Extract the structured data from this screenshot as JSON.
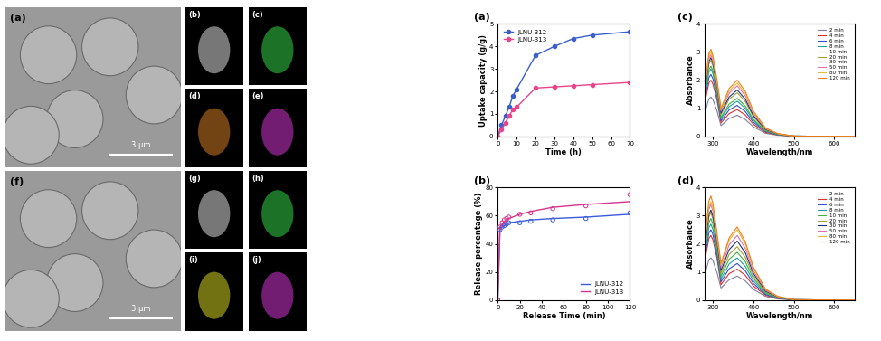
{
  "chart_data": [
    {
      "type": "line",
      "title": "(a)",
      "x_label": "Time (h)",
      "y_label": "Uptake capacity (g/g)",
      "x": [
        0,
        2,
        4,
        6,
        8,
        10,
        20,
        30,
        40,
        50,
        70
      ],
      "xlim": [
        0,
        70
      ],
      "xticks": [
        0,
        10,
        20,
        30,
        40,
        50,
        60,
        70
      ],
      "ylim": [
        0,
        5
      ],
      "yticks": [
        0,
        1,
        2,
        3,
        4,
        5
      ],
      "legend": "upper left",
      "series": [
        {
          "name": "JLNU-312",
          "color": "#3a5fcd",
          "marker": "circle",
          "values": [
            0,
            0.5,
            0.9,
            1.3,
            1.8,
            2.1,
            3.6,
            4.0,
            4.35,
            4.5,
            4.65
          ]
        },
        {
          "name": "JLNU-313",
          "color": "#e8458b",
          "marker": "circle",
          "values": [
            0,
            0.3,
            0.6,
            0.9,
            1.2,
            1.3,
            2.15,
            2.2,
            2.25,
            2.3,
            2.4
          ]
        }
      ]
    },
    {
      "type": "scatter",
      "title": "(b)",
      "x_label": "Release Time (min)",
      "y_label": "Release percentage (%)",
      "x": [
        0,
        2,
        4,
        6,
        8,
        10,
        20,
        30,
        50,
        80,
        120
      ],
      "xlim": [
        0,
        120
      ],
      "xticks": [
        0,
        20,
        40,
        60,
        80,
        100,
        120
      ],
      "ylim": [
        0,
        80
      ],
      "yticks": [
        0,
        20,
        40,
        60,
        80
      ],
      "legend": "lower right",
      "series": [
        {
          "name": "JLNU-312",
          "color": "#3b5bdb",
          "marker": "circle",
          "values": [
            0,
            50,
            52,
            53,
            54,
            55,
            55,
            56,
            57,
            58,
            62
          ],
          "fit": [
            0,
            50,
            52,
            53,
            54,
            55,
            56,
            57,
            58,
            59,
            61
          ]
        },
        {
          "name": "JLNU-313",
          "color": "#d6338c",
          "marker": "circle",
          "values": [
            0,
            52,
            55,
            57,
            58,
            59,
            61,
            62,
            65,
            67,
            75
          ],
          "fit": [
            0,
            52,
            54,
            56,
            57,
            58,
            61,
            63,
            66,
            68,
            70
          ]
        }
      ]
    },
    {
      "type": "line",
      "title": "(c)",
      "x_label": "Wavelength/nm",
      "y_label": "Absorbance",
      "x": [
        280,
        290,
        295,
        300,
        310,
        320,
        340,
        360,
        380,
        400,
        430,
        460,
        500,
        650
      ],
      "xlim": [
        280,
        650
      ],
      "xticks": [
        300,
        400,
        500,
        600
      ],
      "ylim": [
        0,
        4
      ],
      "yticks": [
        0,
        1,
        2,
        3,
        4
      ],
      "legend": "upper right",
      "series": [
        {
          "name": "2 min",
          "color": "#7f7f9f",
          "values": [
            0.84,
            1.33,
            1.4,
            1.3,
            0.91,
            0.38,
            0.64,
            0.75,
            0.6,
            0.34,
            0.11,
            0.04,
            0.01,
            0
          ]
        },
        {
          "name": "4 min",
          "color": "#e03030",
          "values": [
            1.2,
            1.9,
            2.0,
            1.86,
            1.3,
            0.48,
            0.81,
            0.95,
            0.76,
            0.43,
            0.14,
            0.05,
            0.01,
            0
          ]
        },
        {
          "name": "6 min",
          "color": "#3050d0",
          "values": [
            1.32,
            2.09,
            2.2,
            2.05,
            1.43,
            0.55,
            0.94,
            1.1,
            0.88,
            0.5,
            0.17,
            0.06,
            0.01,
            0
          ]
        },
        {
          "name": "8 min",
          "color": "#20a0a0",
          "values": [
            1.44,
            2.28,
            2.4,
            2.23,
            1.56,
            0.63,
            1.06,
            1.25,
            1.0,
            0.56,
            0.19,
            0.06,
            0.01,
            0
          ]
        },
        {
          "name": "10 min",
          "color": "#40b040",
          "values": [
            1.5,
            2.38,
            2.5,
            2.33,
            1.63,
            0.68,
            1.15,
            1.35,
            1.08,
            0.61,
            0.2,
            0.07,
            0.01,
            0
          ]
        },
        {
          "name": "20 min",
          "color": "#a0a030",
          "values": [
            1.62,
            2.57,
            2.7,
            2.51,
            1.76,
            0.78,
            1.32,
            1.55,
            1.24,
            0.7,
            0.23,
            0.08,
            0.01,
            0
          ]
        },
        {
          "name": "30 min",
          "color": "#203080",
          "values": [
            1.68,
            2.66,
            2.8,
            2.6,
            1.82,
            0.83,
            1.4,
            1.65,
            1.32,
            0.74,
            0.25,
            0.08,
            0.01,
            0
          ]
        },
        {
          "name": "50 min",
          "color": "#e070b0",
          "values": [
            1.74,
            2.76,
            2.9,
            2.7,
            1.89,
            0.9,
            1.53,
            1.8,
            1.44,
            0.81,
            0.27,
            0.09,
            0.01,
            0
          ]
        },
        {
          "name": "80 min",
          "color": "#e0c030",
          "values": [
            1.8,
            2.85,
            3.0,
            2.79,
            1.95,
            0.95,
            1.62,
            1.9,
            1.52,
            0.86,
            0.29,
            0.1,
            0.01,
            0
          ]
        },
        {
          "name": "120 min",
          "color": "#f08020",
          "values": [
            1.86,
            2.95,
            3.1,
            2.88,
            2.02,
            1.0,
            1.7,
            2.0,
            1.6,
            0.9,
            0.3,
            0.1,
            0.01,
            0
          ]
        }
      ]
    },
    {
      "type": "line",
      "title": "(d)",
      "x_label": "Wavelength/nm",
      "y_label": "Absorbance",
      "x": [
        280,
        290,
        295,
        300,
        310,
        320,
        340,
        360,
        380,
        400,
        430,
        460,
        500,
        650
      ],
      "xlim": [
        280,
        650
      ],
      "xticks": [
        300,
        400,
        500,
        600
      ],
      "ylim": [
        0,
        4
      ],
      "yticks": [
        0,
        1,
        2,
        3,
        4
      ],
      "legend": "upper right",
      "series": [
        {
          "name": "2 min",
          "color": "#7f7f9f",
          "values": [
            0.9,
            1.43,
            1.5,
            1.4,
            0.98,
            0.43,
            0.72,
            0.85,
            0.68,
            0.38,
            0.13,
            0.04,
            0.01,
            0
          ]
        },
        {
          "name": "4 min",
          "color": "#e03030",
          "values": [
            1.38,
            2.19,
            2.3,
            2.14,
            1.5,
            0.55,
            0.94,
            1.1,
            0.88,
            0.5,
            0.17,
            0.06,
            0.01,
            0
          ]
        },
        {
          "name": "6 min",
          "color": "#3050d0",
          "values": [
            1.5,
            2.38,
            2.5,
            2.33,
            1.63,
            0.65,
            1.11,
            1.3,
            1.04,
            0.59,
            0.2,
            0.07,
            0.01,
            0
          ]
        },
        {
          "name": "8 min",
          "color": "#20a0a0",
          "values": [
            1.62,
            2.57,
            2.7,
            2.51,
            1.76,
            0.75,
            1.28,
            1.5,
            1.2,
            0.68,
            0.23,
            0.08,
            0.01,
            0
          ]
        },
        {
          "name": "10 min",
          "color": "#40b040",
          "values": [
            1.74,
            2.76,
            2.9,
            2.7,
            1.89,
            0.85,
            1.45,
            1.7,
            1.36,
            0.77,
            0.26,
            0.09,
            0.01,
            0
          ]
        },
        {
          "name": "20 min",
          "color": "#a0a030",
          "values": [
            1.86,
            2.95,
            3.1,
            2.88,
            2.02,
            0.95,
            1.62,
            1.9,
            1.52,
            0.86,
            0.29,
            0.1,
            0.01,
            0
          ]
        },
        {
          "name": "30 min",
          "color": "#203080",
          "values": [
            1.92,
            3.04,
            3.2,
            2.98,
            2.08,
            1.05,
            1.79,
            2.1,
            1.68,
            0.95,
            0.32,
            0.11,
            0.01,
            0
          ]
        },
        {
          "name": "50 min",
          "color": "#e070b0",
          "values": [
            2.04,
            3.23,
            3.4,
            3.16,
            2.21,
            1.15,
            1.96,
            2.3,
            1.84,
            1.04,
            0.35,
            0.12,
            0.01,
            0
          ]
        },
        {
          "name": "80 min",
          "color": "#e0c030",
          "values": [
            2.1,
            3.33,
            3.5,
            3.26,
            2.28,
            1.25,
            2.13,
            2.5,
            2.0,
            1.13,
            0.38,
            0.13,
            0.01,
            0
          ]
        },
        {
          "name": "120 min",
          "color": "#f08020",
          "values": [
            2.22,
            3.52,
            3.7,
            3.44,
            2.41,
            1.3,
            2.21,
            2.6,
            2.08,
            1.17,
            0.39,
            0.13,
            0.01,
            0
          ]
        }
      ]
    }
  ],
  "images": [
    {
      "label": "(a)",
      "scale_bar": "3 μm",
      "color": "#9a9a9a"
    },
    {
      "label": "(b)",
      "color": "#c8c8c8"
    },
    {
      "label": "(c)",
      "color": "#30c040"
    },
    {
      "label": "(d)",
      "color": "#c07020"
    },
    {
      "label": "(e)",
      "color": "#c030c0"
    },
    {
      "label": "(f)",
      "scale_bar": "3 μm",
      "color": "#9a9a9a"
    },
    {
      "label": "(g)",
      "color": "#c8c8c8"
    },
    {
      "label": "(h)",
      "color": "#30c040"
    },
    {
      "label": "(i)",
      "color": "#c0c020"
    },
    {
      "label": "(j)",
      "color": "#c030c0"
    }
  ]
}
